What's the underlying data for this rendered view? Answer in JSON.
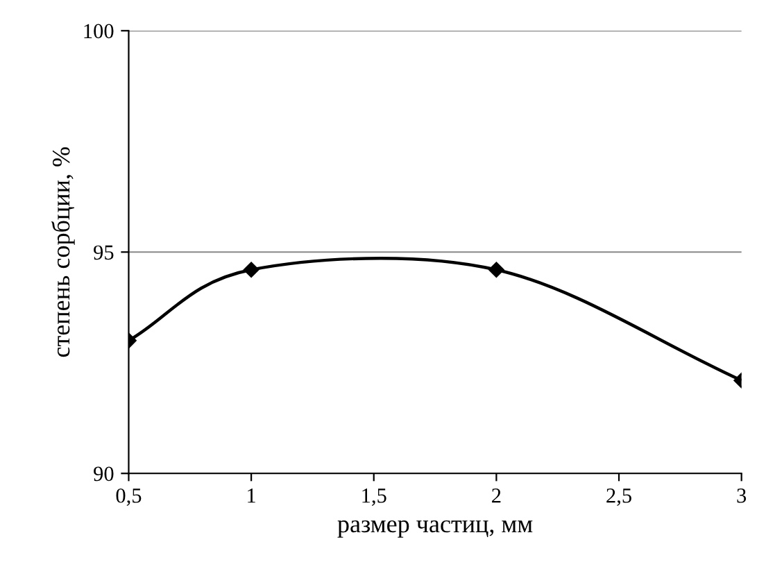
{
  "chart_data": {
    "type": "line",
    "xlabel": "размер частиц, мм",
    "ylabel": "степень сорбции, %",
    "x": [
      0.5,
      1,
      2,
      3
    ],
    "series": [
      {
        "color": "#000000",
        "values": [
          93.0,
          94.6,
          94.6,
          92.1
        ]
      }
    ],
    "xlim": [
      0.5,
      3
    ],
    "xticks": [
      {
        "value": 0.5,
        "label": "0,5"
      },
      1,
      {
        "value": 1.5,
        "label": "1,5"
      },
      2,
      {
        "value": 2.5,
        "label": "2,5"
      },
      3
    ],
    "ylim": [
      90,
      100
    ],
    "yticks": [
      90,
      95,
      100
    ],
    "grid": "y",
    "marker": "diamond",
    "legend": false
  }
}
